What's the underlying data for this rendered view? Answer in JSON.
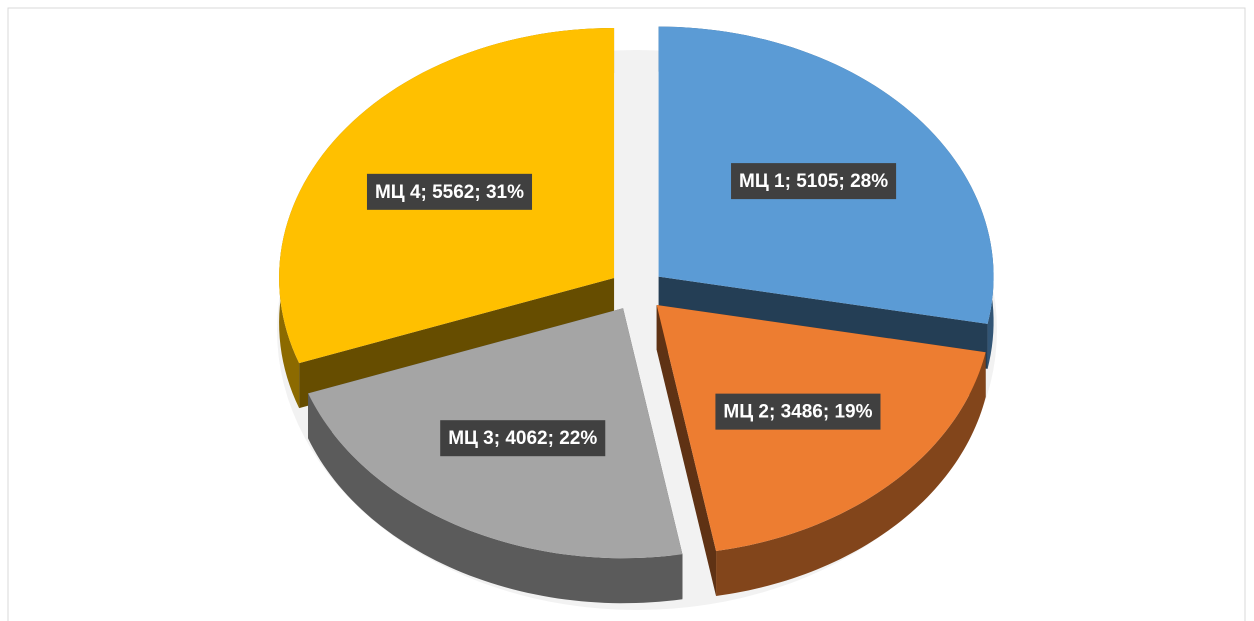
{
  "chart_data": {
    "type": "pie",
    "categories": [
      "МЦ 1",
      "МЦ 2",
      "МЦ 3",
      "МЦ 4"
    ],
    "values": [
      5105,
      3486,
      4062,
      5562
    ],
    "value_labels": [
      "МЦ 1; 5105; 28%",
      "МЦ 2; 3486; 19%",
      "МЦ 3; 4062; 22%",
      "МЦ 4; 5562; 31%"
    ],
    "colors": [
      "#5b9bd5",
      "#ed7d31",
      "#a5a5a5",
      "#ffc000"
    ]
  }
}
